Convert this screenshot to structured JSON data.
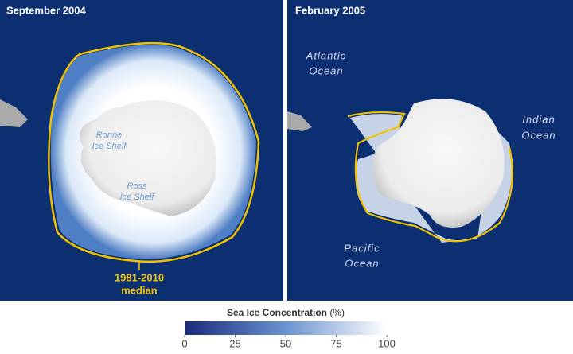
{
  "panels": [
    {
      "title": "September 2004",
      "labels": [
        {
          "lines": [
            "Ronne",
            "Ice Shelf"
          ]
        },
        {
          "lines": [
            "Ross",
            "Ice Shelf"
          ]
        }
      ],
      "median_label": {
        "lines": [
          "1981-2010",
          "median"
        ]
      }
    },
    {
      "title": "February 2005",
      "labels": [
        {
          "lines": [
            "Atlantic",
            "Ocean"
          ]
        },
        {
          "lines": [
            "Indian",
            "Ocean"
          ]
        },
        {
          "lines": [
            "Pacific",
            "Ocean"
          ]
        }
      ]
    }
  ],
  "colorbar": {
    "title": "Sea Ice Concentration",
    "unit": "(%)",
    "range": [
      0,
      100
    ],
    "ticks": [
      0,
      25,
      50,
      75,
      100
    ]
  }
}
